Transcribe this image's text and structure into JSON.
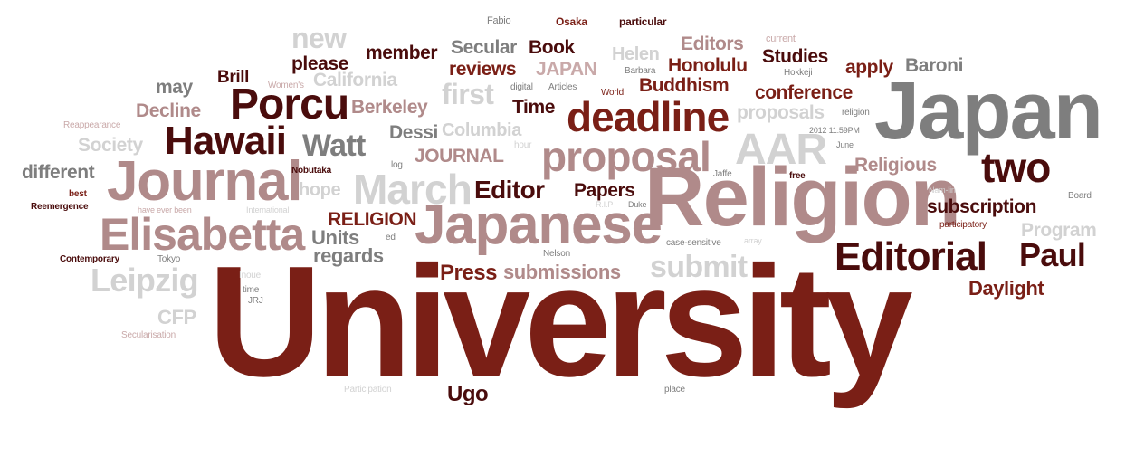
{
  "palette": {
    "dark_maroon": "#4a0c0c",
    "red_brown": "#7a1f16",
    "gray": "#7e7e7e",
    "light_gray": "#d2d2d2",
    "mauve": "#b08a8a",
    "light_mauve": "#c9a9a9"
  },
  "words": [
    {
      "text": "University",
      "color": "#7a1f16"
    },
    {
      "text": "Religion",
      "color": "#b08a8a"
    },
    {
      "text": "Japan",
      "color": "#7e7e7e"
    },
    {
      "text": "Japanese",
      "color": "#b08a8a"
    },
    {
      "text": "Journal",
      "color": "#b08a8a"
    },
    {
      "text": "Elisabetta",
      "color": "#b08a8a"
    },
    {
      "text": "Editorial",
      "color": "#4a0c0c"
    },
    {
      "text": "deadline",
      "color": "#7a1f16"
    },
    {
      "text": "proposal",
      "color": "#b08a8a"
    },
    {
      "text": "Porcu",
      "color": "#4a0c0c"
    },
    {
      "text": "Hawaii",
      "color": "#4a0c0c"
    },
    {
      "text": "two",
      "color": "#4a0c0c"
    },
    {
      "text": "March",
      "color": "#d2d2d2"
    },
    {
      "text": "AAR",
      "color": "#d2d2d2"
    },
    {
      "text": "Leipzig",
      "color": "#d2d2d2"
    },
    {
      "text": "submit",
      "color": "#d2d2d2"
    },
    {
      "text": "Paul",
      "color": "#4a0c0c"
    },
    {
      "text": "Watt",
      "color": "#7e7e7e"
    },
    {
      "text": "first",
      "color": "#d2d2d2"
    },
    {
      "text": "new",
      "color": "#d2d2d2"
    },
    {
      "text": "Editor",
      "color": "#4a0c0c"
    },
    {
      "text": "Press",
      "color": "#7a1f16"
    },
    {
      "text": "submissions",
      "color": "#b08a8a"
    },
    {
      "text": "Units",
      "color": "#7e7e7e"
    },
    {
      "text": "regards",
      "color": "#7e7e7e"
    },
    {
      "text": "Ugo",
      "color": "#4a0c0c"
    },
    {
      "text": "Daylight",
      "color": "#7a1f16"
    },
    {
      "text": "subscription",
      "color": "#4a0c0c"
    },
    {
      "text": "Program",
      "color": "#d2d2d2"
    },
    {
      "text": "Religious",
      "color": "#b08a8a"
    },
    {
      "text": "conference",
      "color": "#7a1f16"
    },
    {
      "text": "Buddhism",
      "color": "#7a1f16"
    },
    {
      "text": "Honolulu",
      "color": "#7a1f16"
    },
    {
      "text": "Editors",
      "color": "#b08a8a"
    },
    {
      "text": "Studies",
      "color": "#4a0c0c"
    },
    {
      "text": "apply",
      "color": "#7a1f16"
    },
    {
      "text": "Baroni",
      "color": "#7e7e7e"
    },
    {
      "text": "Book",
      "color": "#4a0c0c"
    },
    {
      "text": "Secular",
      "color": "#7e7e7e"
    },
    {
      "text": "reviews",
      "color": "#7a1f16"
    },
    {
      "text": "JAPAN",
      "color": "#c9a9a9"
    },
    {
      "text": "Helen",
      "color": "#d2d2d2"
    },
    {
      "text": "member",
      "color": "#4a0c0c"
    },
    {
      "text": "please",
      "color": "#4a0c0c"
    },
    {
      "text": "California",
      "color": "#d2d2d2"
    },
    {
      "text": "Berkeley",
      "color": "#b08a8a"
    },
    {
      "text": "Columbia",
      "color": "#d2d2d2"
    },
    {
      "text": "Time",
      "color": "#4a0c0c"
    },
    {
      "text": "proposals",
      "color": "#d2d2d2"
    },
    {
      "text": "Dessi",
      "color": "#7e7e7e"
    },
    {
      "text": "JOURNAL",
      "color": "#b08a8a"
    },
    {
      "text": "Papers",
      "color": "#4a0c0c"
    },
    {
      "text": "RELIGION",
      "color": "#7a1f16"
    },
    {
      "text": "hope",
      "color": "#d2d2d2"
    },
    {
      "text": "may",
      "color": "#7e7e7e"
    },
    {
      "text": "Brill",
      "color": "#4a0c0c"
    },
    {
      "text": "Decline",
      "color": "#b08a8a"
    },
    {
      "text": "Society",
      "color": "#d2d2d2"
    },
    {
      "text": "different",
      "color": "#7e7e7e"
    },
    {
      "text": "CFP",
      "color": "#d2d2d2"
    },
    {
      "text": "Fabio",
      "color": "#7e7e7e"
    },
    {
      "text": "Osaka",
      "color": "#7a1f16"
    },
    {
      "text": "particular",
      "color": "#4a0c0c"
    },
    {
      "text": "current",
      "color": "#c9a9a9"
    },
    {
      "text": "Hokkeji",
      "color": "#7e7e7e"
    },
    {
      "text": "Barbara",
      "color": "#7e7e7e"
    },
    {
      "text": "Women's",
      "color": "#c9a9a9"
    },
    {
      "text": "digital",
      "color": "#7e7e7e"
    },
    {
      "text": "Articles",
      "color": "#7e7e7e"
    },
    {
      "text": "World",
      "color": "#7a1f16"
    },
    {
      "text": "religion",
      "color": "#7e7e7e"
    },
    {
      "text": "2012 11:59PM",
      "color": "#7e7e7e"
    },
    {
      "text": "June",
      "color": "#7e7e7e"
    },
    {
      "text": "hour",
      "color": "#d2d2d2"
    },
    {
      "text": "log",
      "color": "#7e7e7e"
    },
    {
      "text": "Reappearance",
      "color": "#c9a9a9"
    },
    {
      "text": "Nobutaka",
      "color": "#4a0c0c"
    },
    {
      "text": "Jaffe",
      "color": "#7e7e7e"
    },
    {
      "text": "free",
      "color": "#4a0c0c"
    },
    {
      "text": "Nam-lin",
      "color": "#d2d2d2"
    },
    {
      "text": "Board",
      "color": "#7e7e7e"
    },
    {
      "text": "best",
      "color": "#7a1f16"
    },
    {
      "text": "Reemergence",
      "color": "#4a0c0c"
    },
    {
      "text": "have ever been",
      "color": "#c9a9a9"
    },
    {
      "text": "International",
      "color": "#d2d2d2"
    },
    {
      "text": "R.I.P",
      "color": "#d2d2d2"
    },
    {
      "text": "Duke",
      "color": "#7e7e7e"
    },
    {
      "text": "participatory",
      "color": "#7a1f16"
    },
    {
      "text": "ed",
      "color": "#7e7e7e"
    },
    {
      "text": "Nelson",
      "color": "#7e7e7e"
    },
    {
      "text": "case-sensitive",
      "color": "#7e7e7e"
    },
    {
      "text": "array",
      "color": "#d2d2d2"
    },
    {
      "text": "Contemporary",
      "color": "#4a0c0c"
    },
    {
      "text": "Tokyo",
      "color": "#7e7e7e"
    },
    {
      "text": "Inoue",
      "color": "#d2d2d2"
    },
    {
      "text": "time",
      "color": "#7e7e7e"
    },
    {
      "text": "JRJ",
      "color": "#7e7e7e"
    },
    {
      "text": "Secularisation",
      "color": "#c9a9a9"
    },
    {
      "text": "Participation",
      "color": "#d2d2d2"
    },
    {
      "text": "place",
      "color": "#7e7e7e"
    }
  ]
}
